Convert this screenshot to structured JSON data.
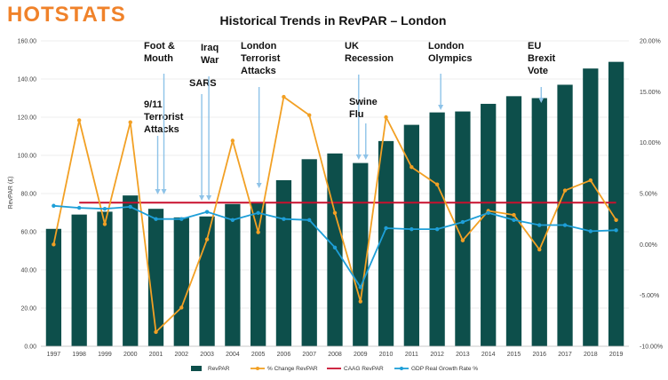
{
  "logo": {
    "text": "HOTSTATS",
    "color": "#f0822a"
  },
  "colors": {
    "bar": "#0d4f4b",
    "pct_change": "#f2a024",
    "caag": "#c8102e",
    "gdp": "#1e9fd8",
    "arrow": "#8ec3e8",
    "grid": "#d9d9d9"
  },
  "chart_data": {
    "type": "bar",
    "title": "Historical Trends in RevPAR – London",
    "ylabel": "RevPAR (£)",
    "ylim": [
      0,
      160
    ],
    "y2lim": [
      -10,
      20
    ],
    "categories": [
      "1997",
      "1998",
      "1999",
      "2000",
      "2001",
      "2002",
      "2003",
      "2004",
      "2005",
      "2006",
      "2007",
      "2008",
      "2009",
      "2010",
      "2011",
      "2012",
      "2013",
      "2014",
      "2015",
      "2016",
      "2017",
      "2018",
      "2019"
    ],
    "y_ticks": [
      "0.00",
      "20.00",
      "40.00",
      "60.00",
      "80.00",
      "100.00",
      "120.00",
      "140.00",
      "160.00"
    ],
    "y2_ticks": [
      "-10.00%",
      "-5.00%",
      "0.00%",
      "5.00%",
      "10.00%",
      "15.00%",
      "20.00%"
    ],
    "grid": true,
    "legend_position": "bottom",
    "series": [
      {
        "name": "RevPAR",
        "kind": "bar",
        "axis": "left",
        "values": [
          61.5,
          69,
          70.5,
          79,
          72,
          67.5,
          68,
          74.5,
          75.5,
          87,
          98,
          101,
          96,
          107.5,
          116,
          122.5,
          123,
          127,
          131,
          130,
          137,
          145.5,
          149
        ]
      },
      {
        "name": "% Change RevPAR",
        "kind": "line",
        "axis": "right",
        "values": [
          0,
          12.2,
          2,
          12,
          -8.6,
          -6.2,
          0.5,
          10.2,
          1.2,
          14.5,
          12.7,
          3.1,
          -5.6,
          12.5,
          7.6,
          5.9,
          0.4,
          3.3,
          2.9,
          -0.5,
          5.3,
          6.3,
          2.4
        ]
      },
      {
        "name": "CAAG RevPAR",
        "kind": "line",
        "axis": "right",
        "values": [
          null,
          4.1,
          4.1,
          4.1,
          4.1,
          4.1,
          4.1,
          4.1,
          4.1,
          4.1,
          4.1,
          4.1,
          4.1,
          4.1,
          4.1,
          4.1,
          4.1,
          4.1,
          4.1,
          4.1,
          4.1,
          4.1,
          4.1
        ]
      },
      {
        "name": "GDP Real Growth Rate %",
        "kind": "line",
        "axis": "right",
        "values": [
          3.8,
          3.6,
          3.5,
          3.7,
          2.5,
          2.5,
          3.2,
          2.4,
          3.1,
          2.5,
          2.4,
          -0.3,
          -4.2,
          1.6,
          1.5,
          1.5,
          2.2,
          3.1,
          2.4,
          1.9,
          1.9,
          1.3,
          1.4
        ]
      }
    ],
    "annotations": [
      {
        "lines": [
          "9/11",
          "Terrorist",
          "Attacks"
        ],
        "year": "2001"
      },
      {
        "lines": [
          "Foot &",
          "Mouth"
        ],
        "year": "2001"
      },
      {
        "lines": [
          "SARS"
        ],
        "year": "2003"
      },
      {
        "lines": [
          "Iraq",
          "War"
        ],
        "year": "2003"
      },
      {
        "lines": [
          "London",
          "Terrorist",
          "Attacks"
        ],
        "year": "2005"
      },
      {
        "lines": [
          "UK",
          "Recession"
        ],
        "year": "2009"
      },
      {
        "lines": [
          "Swine",
          "Flu"
        ],
        "year": "2009"
      },
      {
        "lines": [
          "London",
          "Olympics"
        ],
        "year": "2012"
      },
      {
        "lines": [
          "EU",
          "Brexit",
          "Vote"
        ],
        "year": "2016"
      }
    ]
  }
}
